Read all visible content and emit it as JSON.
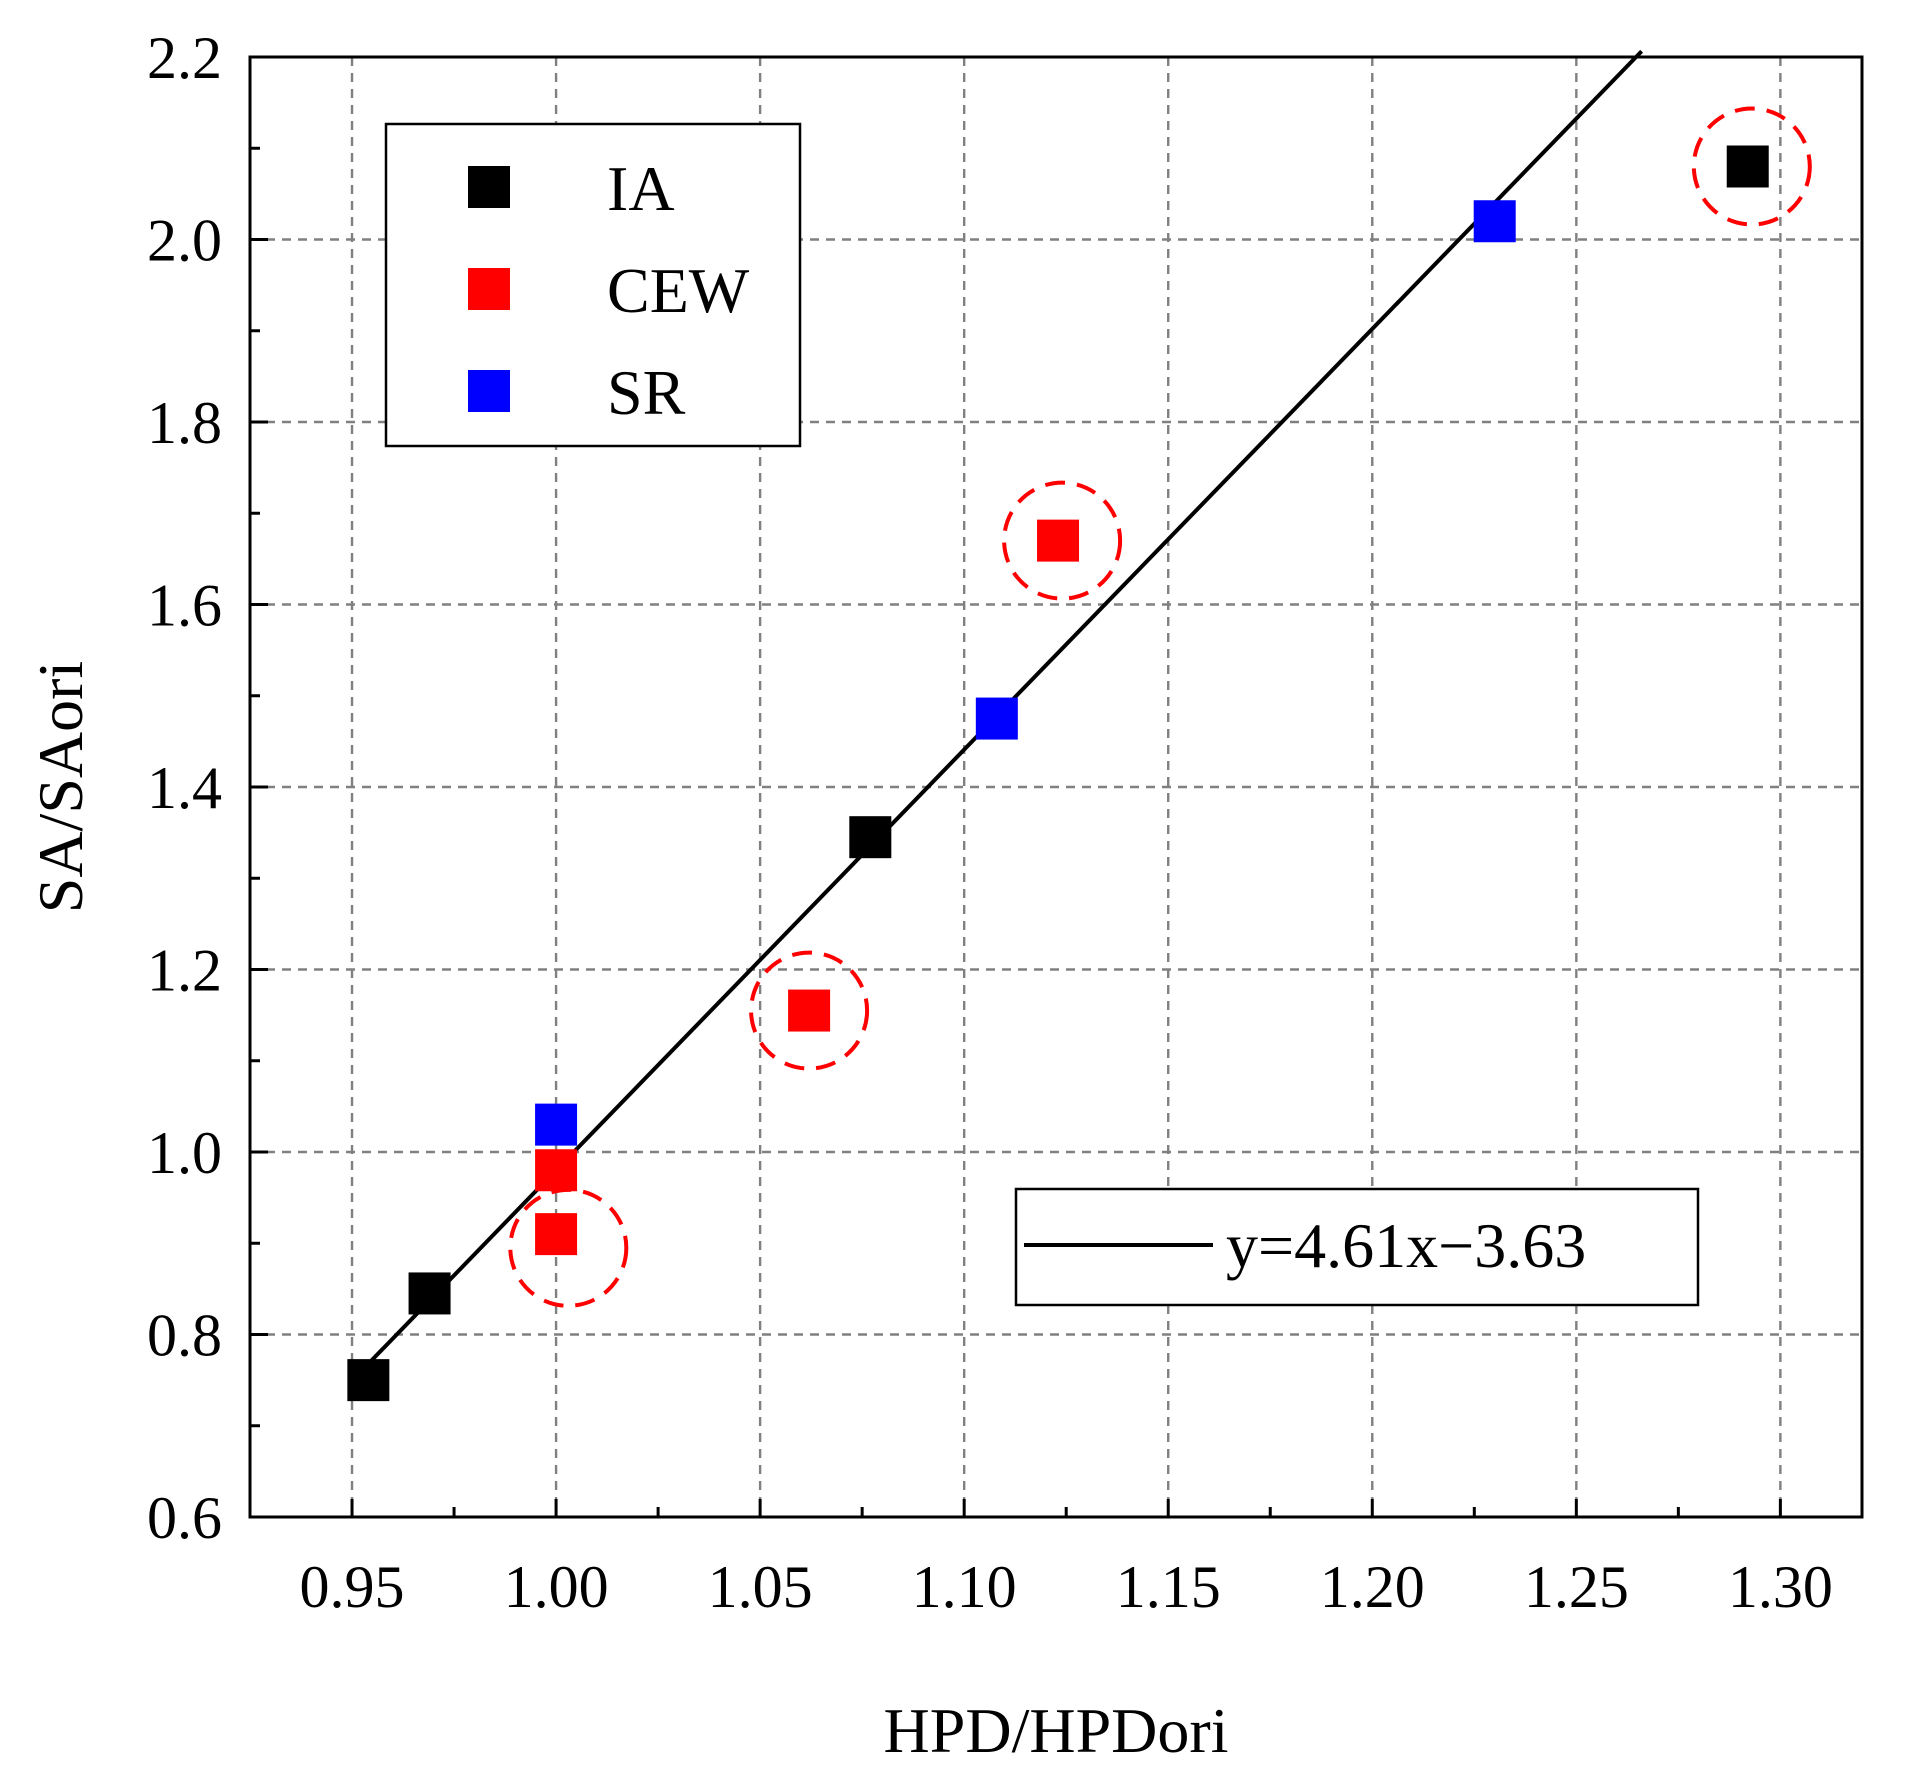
{
  "chart_data": {
    "type": "scatter",
    "title": "",
    "xlabel": "HPD/HPDori",
    "ylabel": "SA/SAori",
    "xlim": [
      0.925,
      1.32
    ],
    "ylim": [
      0.6,
      2.2
    ],
    "x_ticks": [
      "0.95",
      "1.00",
      "1.05",
      "1.10",
      "1.15",
      "1.20",
      "1.25",
      "1.30"
    ],
    "y_ticks": [
      "0.6",
      "0.8",
      "1.0",
      "1.2",
      "1.4",
      "1.6",
      "1.8",
      "2.0",
      "2.2"
    ],
    "grid": true,
    "legend_position": "top-left",
    "series": [
      {
        "name": "IA",
        "color": "#000000",
        "marker": "square",
        "points": [
          [
            0.954,
            0.75
          ],
          [
            0.969,
            0.845
          ],
          [
            1.077,
            1.345
          ],
          [
            1.292,
            2.08
          ]
        ]
      },
      {
        "name": "CEW",
        "color": "#ff0000",
        "marker": "square",
        "points": [
          [
            1.0,
            0.91
          ],
          [
            1.0,
            0.98
          ],
          [
            1.062,
            1.155
          ],
          [
            1.123,
            1.67
          ]
        ]
      },
      {
        "name": "SR",
        "color": "#0000ff",
        "marker": "square",
        "points": [
          [
            1.0,
            1.03
          ],
          [
            1.108,
            1.475
          ],
          [
            1.23,
            2.02
          ]
        ]
      }
    ],
    "fit_line": {
      "label": "y=4.61x−3.63",
      "slope": 4.61,
      "intercept": -3.63,
      "x_range": [
        0.954,
        1.266
      ],
      "color": "#000000"
    },
    "highlight_circles": {
      "color": "#ff0000",
      "centers": [
        [
          1.003,
          0.895
        ],
        [
          1.062,
          1.155
        ],
        [
          1.124,
          1.67
        ],
        [
          1.293,
          2.08
        ]
      ]
    }
  }
}
